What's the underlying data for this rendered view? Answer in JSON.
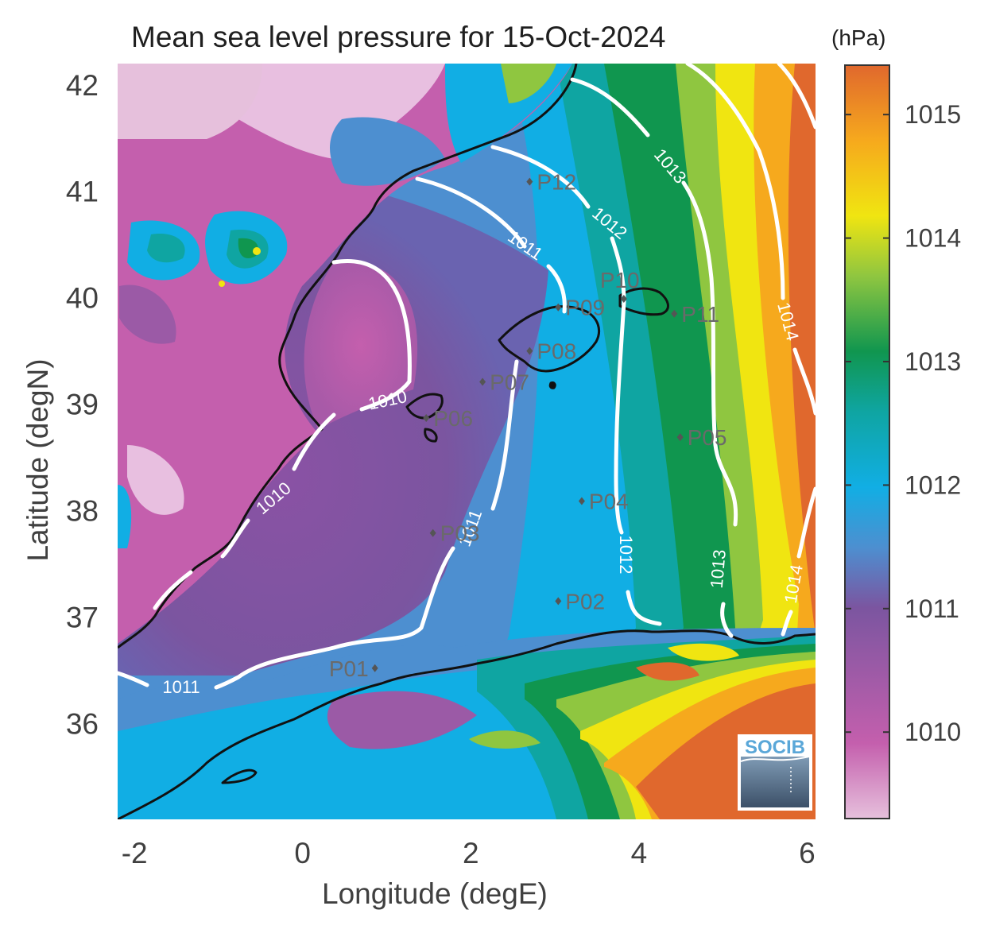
{
  "map": {
    "title": "Mean sea level pressure for 15-Oct-2024",
    "xlabel": "Longitude (degE)",
    "ylabel": "Latitude (degN)",
    "x_ticks": [
      "-2",
      "0",
      "2",
      "4",
      "6"
    ],
    "y_ticks": [
      "42",
      "41",
      "40",
      "39",
      "38",
      "37",
      "36"
    ],
    "x_range": [
      -2.2,
      6.1
    ],
    "y_range": [
      35.1,
      42.2
    ]
  },
  "colorbar": {
    "unit": "(hPa)",
    "ticks": [
      "1010",
      "1011",
      "1012",
      "1013",
      "1014",
      "1015"
    ],
    "range": [
      1009.3,
      1015.4
    ],
    "colors": [
      "#e6c0dc",
      "#c45fad",
      "#7b55a0",
      "#4d8fd0",
      "#11aee4",
      "#0fa5a2",
      "#10964f",
      "#8fc640",
      "#f0e511",
      "#f6a91d",
      "#e0682d"
    ]
  },
  "stations": [
    {
      "label": "P01",
      "lon": 0.86,
      "lat": 36.52
    },
    {
      "label": "P02",
      "lon": 3.04,
      "lat": 37.15
    },
    {
      "label": "P03",
      "lon": 1.55,
      "lat": 37.79
    },
    {
      "label": "P04",
      "lon": 3.32,
      "lat": 38.09
    },
    {
      "label": "P05",
      "lon": 4.49,
      "lat": 38.69
    },
    {
      "label": "P06",
      "lon": 1.47,
      "lat": 38.87
    },
    {
      "label": "P07",
      "lon": 2.14,
      "lat": 39.21
    },
    {
      "label": "P08",
      "lon": 2.7,
      "lat": 39.5
    },
    {
      "label": "P09",
      "lon": 3.04,
      "lat": 39.91
    },
    {
      "label": "P10",
      "lon": 3.82,
      "lat": 39.99
    },
    {
      "label": "P11",
      "lon": 4.42,
      "lat": 39.85
    },
    {
      "label": "P12",
      "lon": 2.7,
      "lat": 41.09
    }
  ],
  "isobars": [
    {
      "label": "1010"
    },
    {
      "label": "1011"
    },
    {
      "label": "1012"
    },
    {
      "label": "1013"
    },
    {
      "label": "1014"
    }
  ],
  "logo": {
    "text": "SOCIB"
  }
}
